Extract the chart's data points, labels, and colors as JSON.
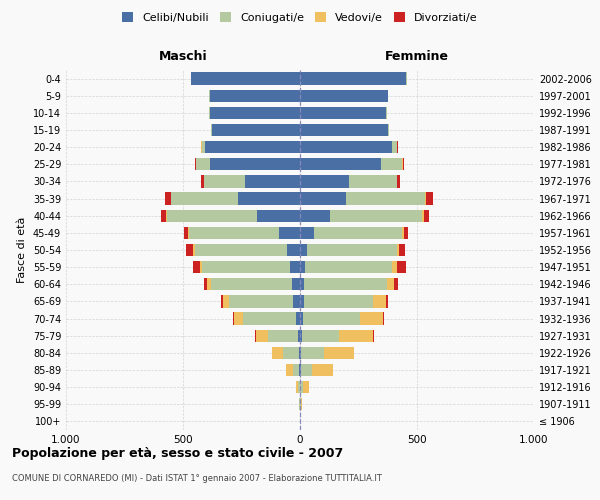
{
  "age_groups": [
    "100+",
    "95-99",
    "90-94",
    "85-89",
    "80-84",
    "75-79",
    "70-74",
    "65-69",
    "60-64",
    "55-59",
    "50-54",
    "45-49",
    "40-44",
    "35-39",
    "30-34",
    "25-29",
    "20-24",
    "15-19",
    "10-14",
    "5-9",
    "0-4"
  ],
  "birth_years": [
    "≤ 1906",
    "1907-1911",
    "1912-1916",
    "1917-1921",
    "1922-1926",
    "1927-1931",
    "1932-1936",
    "1937-1941",
    "1942-1946",
    "1947-1951",
    "1952-1956",
    "1957-1961",
    "1962-1966",
    "1967-1971",
    "1972-1976",
    "1977-1981",
    "1982-1986",
    "1987-1991",
    "1992-1996",
    "1997-2001",
    "2002-2006"
  ],
  "colors": {
    "celibi": "#4a6fa5",
    "coniugati": "#b5c9a0",
    "vedovi": "#f0c060",
    "divorziati": "#cc2222"
  },
  "male": {
    "celibi": [
      1,
      1,
      2,
      3,
      5,
      10,
      18,
      28,
      35,
      42,
      55,
      90,
      185,
      265,
      235,
      385,
      405,
      375,
      385,
      385,
      465
    ],
    "coniugati": [
      1,
      2,
      5,
      28,
      68,
      128,
      225,
      275,
      345,
      375,
      395,
      385,
      385,
      285,
      175,
      58,
      15,
      5,
      5,
      2,
      2
    ],
    "vedovi": [
      0,
      2,
      8,
      28,
      48,
      52,
      38,
      28,
      18,
      12,
      8,
      5,
      3,
      3,
      2,
      2,
      2,
      1,
      0,
      0,
      0
    ],
    "divorziati": [
      0,
      0,
      0,
      0,
      0,
      2,
      5,
      8,
      12,
      28,
      28,
      15,
      22,
      22,
      12,
      5,
      2,
      1,
      0,
      0,
      0
    ]
  },
  "female": {
    "celibi": [
      1,
      1,
      2,
      3,
      5,
      8,
      12,
      15,
      18,
      20,
      28,
      60,
      128,
      198,
      208,
      348,
      395,
      375,
      368,
      375,
      455
    ],
    "coniugati": [
      1,
      3,
      10,
      48,
      98,
      158,
      245,
      295,
      355,
      375,
      385,
      375,
      395,
      335,
      205,
      88,
      18,
      5,
      5,
      2,
      2
    ],
    "vedovi": [
      0,
      5,
      28,
      88,
      128,
      148,
      98,
      58,
      28,
      18,
      12,
      8,
      5,
      5,
      3,
      3,
      2,
      1,
      0,
      0,
      0
    ],
    "divorziati": [
      0,
      0,
      0,
      0,
      0,
      2,
      5,
      10,
      18,
      38,
      22,
      18,
      22,
      32,
      12,
      5,
      2,
      1,
      0,
      0,
      0
    ]
  },
  "xlim": 1000,
  "title": "Popolazione per età, sesso e stato civile - 2007",
  "subtitle": "COMUNE DI CORNAREDO (MI) - Dati ISTAT 1° gennaio 2007 - Elaborazione TUTTITALIA.IT",
  "ylabel_left": "Fasce di età",
  "xlabel_left": "Maschi",
  "xlabel_right": "Femmine",
  "bg_color": "#f9f9f9",
  "grid_color": "#cccccc",
  "bar_height": 0.72
}
